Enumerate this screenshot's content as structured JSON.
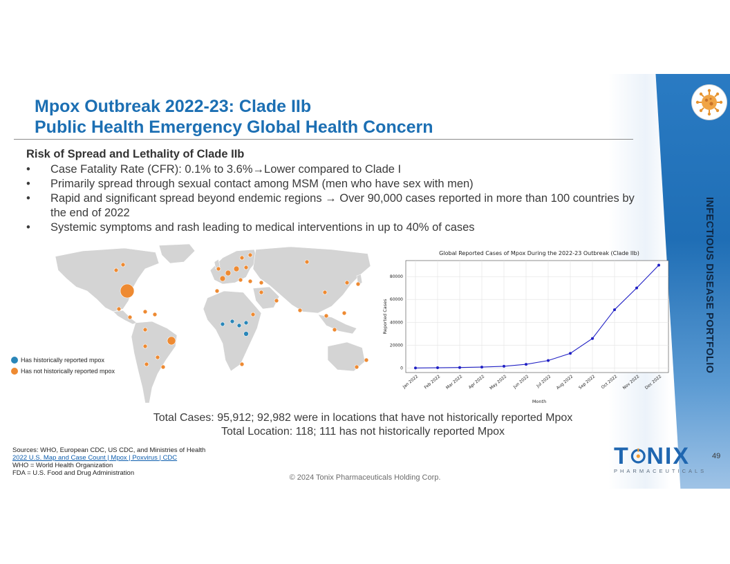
{
  "title": {
    "line1": "Mpox Outbreak 2022-23: Clade IIb",
    "line2": "Public Health Emergency Global Health Concern"
  },
  "side_label": "INFECTIOUS DISEASE PORTFOLIO",
  "section_heading": "Risk of Spread and Lethality of Clade IIb",
  "bullets": [
    "Case Fatality Rate (CFR): 0.1% to 3.6%→Lower compared to Clade I",
    "Primarily spread through sexual contact among MSM (men who have sex with men)",
    "Rapid and significant spread beyond endemic regions → Over 90,000 cases reported in more than 100 countries by the end of 2022",
    "Systemic symptoms and rash leading to medical interventions in up to 40% of cases"
  ],
  "bullet_glyph": "•",
  "map_legend": {
    "historical": "Has historically reported mpox",
    "not_historical": "Has not historically reported mpox",
    "historical_color": "#2a86b8",
    "not_historical_color": "#ee8a32"
  },
  "chart_data": {
    "type": "line",
    "title": "Global Reported Cases of Mpox During the 2022-23 Outbreak (Clade IIb)",
    "xlabel": "Month",
    "ylabel": "Reported Cases",
    "categories": [
      "Jan 2022",
      "Feb 2022",
      "Mar 2022",
      "Apr 2022",
      "May 2022",
      "Jun 2022",
      "Jul 2022",
      "Aug 2022",
      "Sep 2022",
      "Oct 2022",
      "Nov 2022",
      "Dec 2022"
    ],
    "values": [
      0,
      200,
      400,
      800,
      1500,
      3200,
      6500,
      12800,
      25800,
      51000,
      70000,
      90000
    ],
    "yticks": [
      0,
      20000,
      40000,
      60000,
      80000
    ],
    "ylim": [
      -4000,
      94000
    ],
    "grid": true,
    "line_color": "#1f1fc4"
  },
  "totals": {
    "line1": "Total Cases: 95,912; 92,982 were in locations that have not historically reported Mpox",
    "line2": "Total Location: 118; 111 has not historically reported Mpox"
  },
  "sources": {
    "line1": "Sources: WHO, European CDC, US CDC, and Ministries of Health",
    "link": "2022 U.S. Map and Case Count | Mpox | Poxvirus | CDC",
    "line3": "WHO = World Health Organization",
    "line4": "FDA = U.S. Food and Drug Administration"
  },
  "copyright": "© 2024 Tonix Pharmaceuticals Holding Corp.",
  "logo": {
    "word_left": "T",
    "word_right": "NIX",
    "subtitle": "PHARMACEUTICALS"
  },
  "page_number": "49",
  "colors": {
    "accent": "#1c6fb3",
    "panel": "#1f6eb5"
  }
}
